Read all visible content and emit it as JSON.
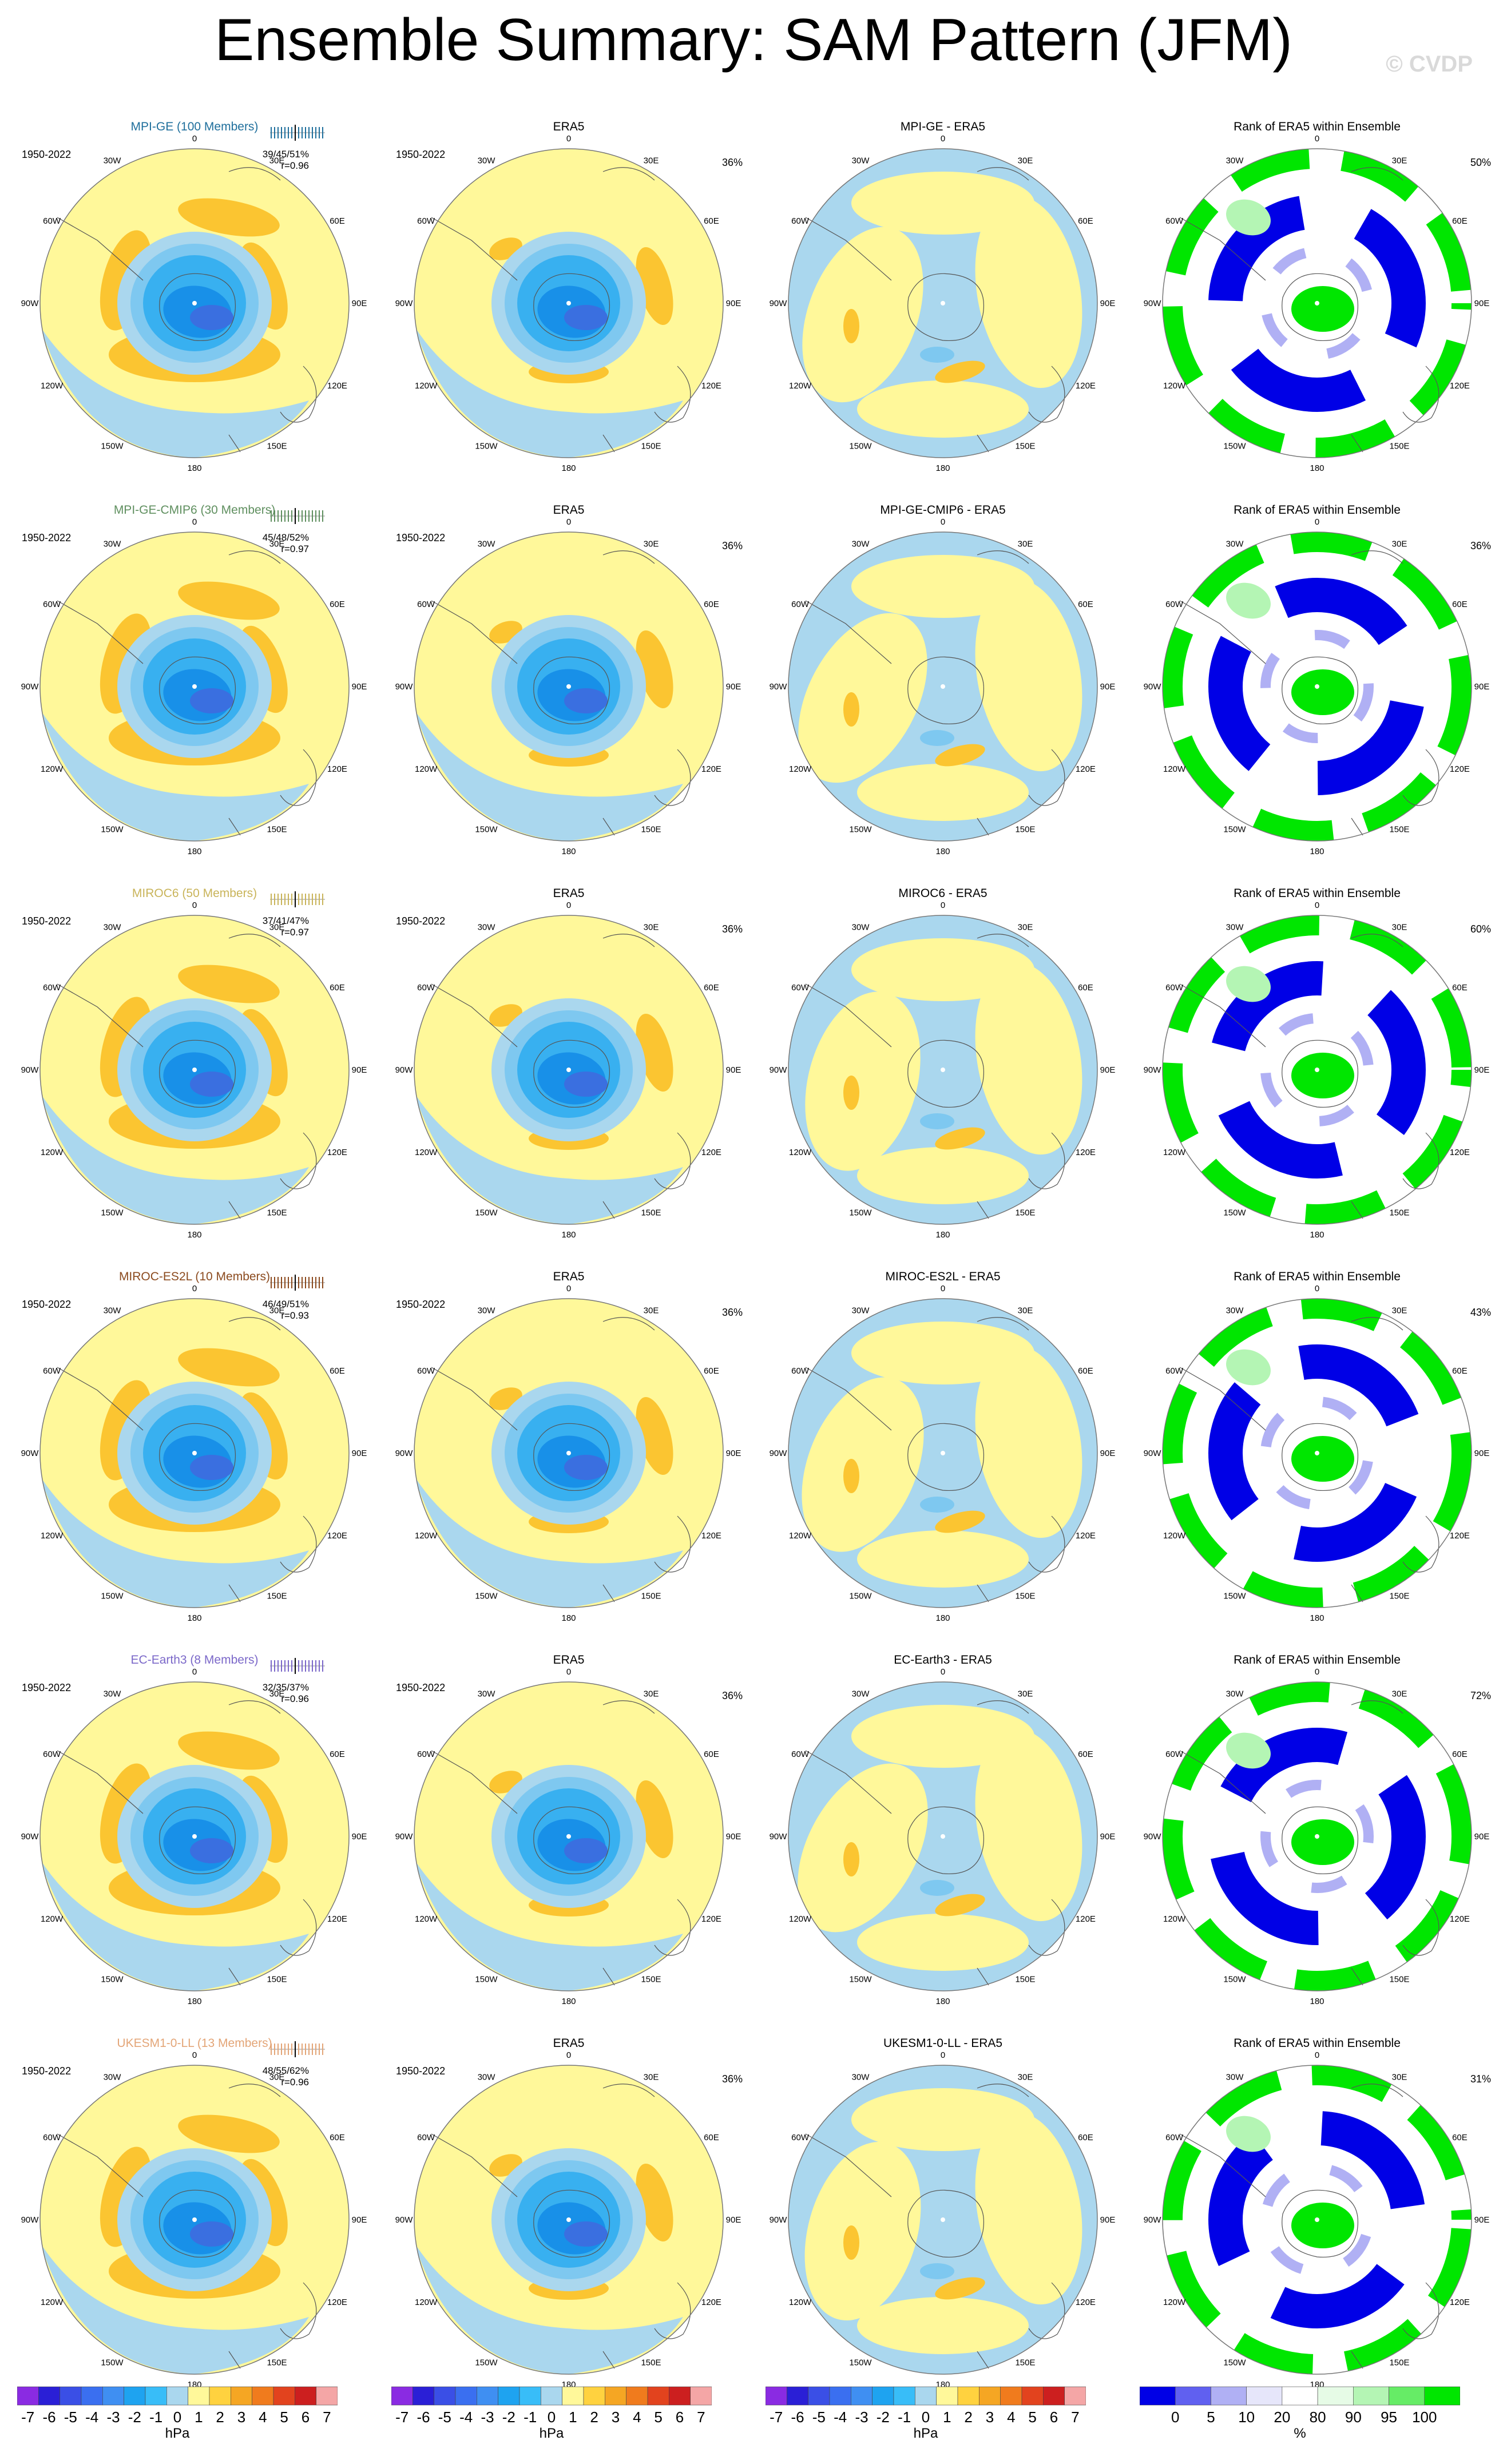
{
  "title": "Ensemble Summary: SAM Pattern (JFM)",
  "watermark": "© CVDP",
  "longitude_labels": [
    "0",
    "30E",
    "60E",
    "90E",
    "120E",
    "150E",
    "180",
    "150W",
    "120W",
    "90W",
    "60W",
    "30W"
  ],
  "rows": [
    {
      "model": "MPI-GE (100 Members)",
      "color": "#1f6f9c",
      "period": "1950-2022",
      "stats_a": "39/45/51%",
      "stats_b": "r=0.96",
      "panels": [
        "MPI-GE (100 Members)",
        "ERA5",
        "MPI-GE - ERA5",
        "Rank of ERA5 within Ensemble"
      ],
      "era5_pct": "36%",
      "rank_pct": "50%"
    },
    {
      "model": "MPI-GE-CMIP6 (30 Members)",
      "color": "#5f8f5f",
      "period": "1950-2022",
      "stats_a": "45/48/52%",
      "stats_b": "r=0.97",
      "panels": [
        "MPI-GE-CMIP6 (30 Members)",
        "ERA5",
        "MPI-GE-CMIP6 - ERA5",
        "Rank of ERA5 within Ensemble"
      ],
      "era5_pct": "36%",
      "rank_pct": "36%"
    },
    {
      "model": "MIROC6 (50 Members)",
      "color": "#c9b45a",
      "period": "1950-2022",
      "stats_a": "37/41/47%",
      "stats_b": "r=0.97",
      "panels": [
        "MIROC6 (50 Members)",
        "ERA5",
        "MIROC6 - ERA5",
        "Rank of ERA5 within Ensemble"
      ],
      "era5_pct": "36%",
      "rank_pct": "60%"
    },
    {
      "model": "MIROC-ES2L (10 Members)",
      "color": "#8b4a1e",
      "period": "1950-2022",
      "stats_a": "46/49/51%",
      "stats_b": "r=0.93",
      "panels": [
        "MIROC-ES2L (10 Members)",
        "ERA5",
        "MIROC-ES2L - ERA5",
        "Rank of ERA5 within Ensemble"
      ],
      "era5_pct": "36%",
      "rank_pct": "43%"
    },
    {
      "model": "EC-Earth3 (8 Members)",
      "color": "#7b68c9",
      "period": "1950-2022",
      "stats_a": "32/35/37%",
      "stats_b": "r=0.96",
      "panels": [
        "EC-Earth3 (8 Members)",
        "ERA5",
        "EC-Earth3 - ERA5",
        "Rank of ERA5 within Ensemble"
      ],
      "era5_pct": "36%",
      "rank_pct": "72%"
    },
    {
      "model": "UKESM1-0-LL (13 Members)",
      "color": "#e3a577",
      "period": "1950-2022",
      "stats_a": "48/55/62%",
      "stats_b": "r=0.96",
      "panels": [
        "UKESM1-0-LL (13 Members)",
        "ERA5",
        "UKESM1-0-LL - ERA5",
        "Rank of ERA5 within Ensemble"
      ],
      "era5_pct": "36%",
      "rank_pct": "31%"
    }
  ],
  "colorbars": {
    "hpa": {
      "ticks": [
        "-7",
        "-6",
        "-5",
        "-4",
        "-3",
        "-2",
        "-1",
        "0",
        "1",
        "2",
        "3",
        "4",
        "5",
        "6",
        "7"
      ],
      "unit": "hPa",
      "colors": [
        "#8a2be2",
        "#2a1fd6",
        "#3a4fe6",
        "#3a6ff0",
        "#3f8ff2",
        "#1ea3f0",
        "#38bdf8",
        "#aad7ee",
        "#fff89a",
        "#ffd23f",
        "#f5a623",
        "#f07b1d",
        "#e2431e",
        "#cc1f1f",
        "#f4a6a6"
      ]
    },
    "rank": {
      "ticks": [
        "0",
        "5",
        "10",
        "20",
        "80",
        "90",
        "95",
        "100"
      ],
      "unit": "%",
      "colors": [
        "#0000e6",
        "#6060f0",
        "#b0b0f4",
        "#e6e6fa",
        "#ffffff",
        "#e6fbe6",
        "#b4f5b4",
        "#66ec66",
        "#00e600"
      ]
    }
  }
}
